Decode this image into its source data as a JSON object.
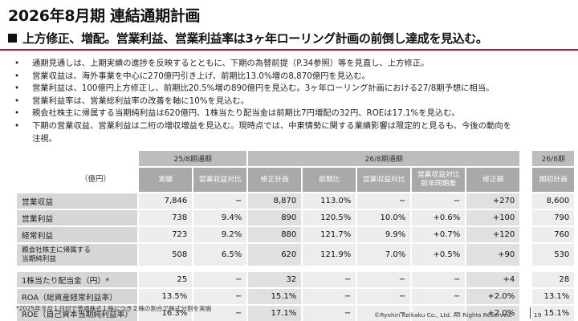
{
  "title": "2026年8月期 連結通期計画",
  "subtitle": "上方修正、増配。営業利益、営業利益率は3ヶ年ローリング計画の前倒し達成を見込む。",
  "bullets": [
    [
      "通期見通しは、上期実績の進捗を反映するとともに、下期の為替前提（P.34参照）等を見直し、上方修正。"
    ],
    [
      "営業収益は、海外事業を中心に270億円引き上げ、前期比13.0%増の8,870億円を見込む。"
    ],
    [
      "営業利益は、100億円上方修正し、前期比20.5%増の890億円を見込む。3ヶ年ローリング計画における27/8期予想に相当。"
    ],
    [
      "営業利益率は、営業総利益率の改善を軸に10%を見込む。"
    ],
    [
      "親会社株主に帰属する当期純利益は620億円、1株当たり配当金は前期比7円増配の32円、ROEは17.1%を見込む。"
    ],
    [
      "下期の営業収益、営業利益は二桁の増収増益を見込む。現時点では、中東情勢に関する業績影響は限定的と見るも、今後の動向を",
      "注視。"
    ]
  ],
  "table": {
    "unit": "（億円）",
    "group_headers": [
      "25/8期通期",
      "26/8期通期",
      "26/8期"
    ],
    "sub_headers": [
      "実績",
      "営業収益対比",
      "修正計画",
      "前期比",
      "営業収益対比",
      "営業収益対比\n前年同期差",
      "修正額",
      "期初計画"
    ],
    "rows": [
      {
        "label": "営業収益",
        "values": [
          "7,846",
          "−",
          "8,870",
          "113.0%",
          "−",
          "−",
          "+270",
          "8,600"
        ]
      },
      {
        "label": "営業利益",
        "values": [
          "738",
          "9.4%",
          "890",
          "120.5%",
          "10.0%",
          "+0.6%",
          "+100",
          "790"
        ]
      },
      {
        "label": "経常利益",
        "values": [
          "723",
          "9.2%",
          "880",
          "121.7%",
          "9.9%",
          "+0.7%",
          "+120",
          "760"
        ]
      },
      {
        "label": "親会社株主に帰属する\n当期純利益",
        "values": [
          "508",
          "6.5%",
          "620",
          "121.9%",
          "7.0%",
          "+0.5%",
          "+90",
          "530"
        ]
      }
    ],
    "rows2": [
      {
        "label": "1株当たり配当金（円）*",
        "values": [
          "25",
          "−",
          "32",
          "−",
          "−",
          "−",
          "+4",
          "28"
        ]
      },
      {
        "label": "ROA（総資産経常利益率）",
        "values": [
          "13.5%",
          "−",
          "15.1%",
          "−",
          "−",
          "−",
          "+2.0%",
          "13.1%"
        ]
      },
      {
        "label": "ROE（自己資本当期純利益率）",
        "values": [
          "16.3%",
          "−",
          "17.1%",
          "−",
          "−",
          "−",
          "+2.0%",
          "15.1%"
        ]
      }
    ]
  },
  "footnote": "*2025年９月１日付で普通株式１株につき２株の割合で株式分割を実施",
  "copyright": "©Ryohin Keikaku Co., Ltd. All Rights Reserved.",
  "page_number": "19"
}
